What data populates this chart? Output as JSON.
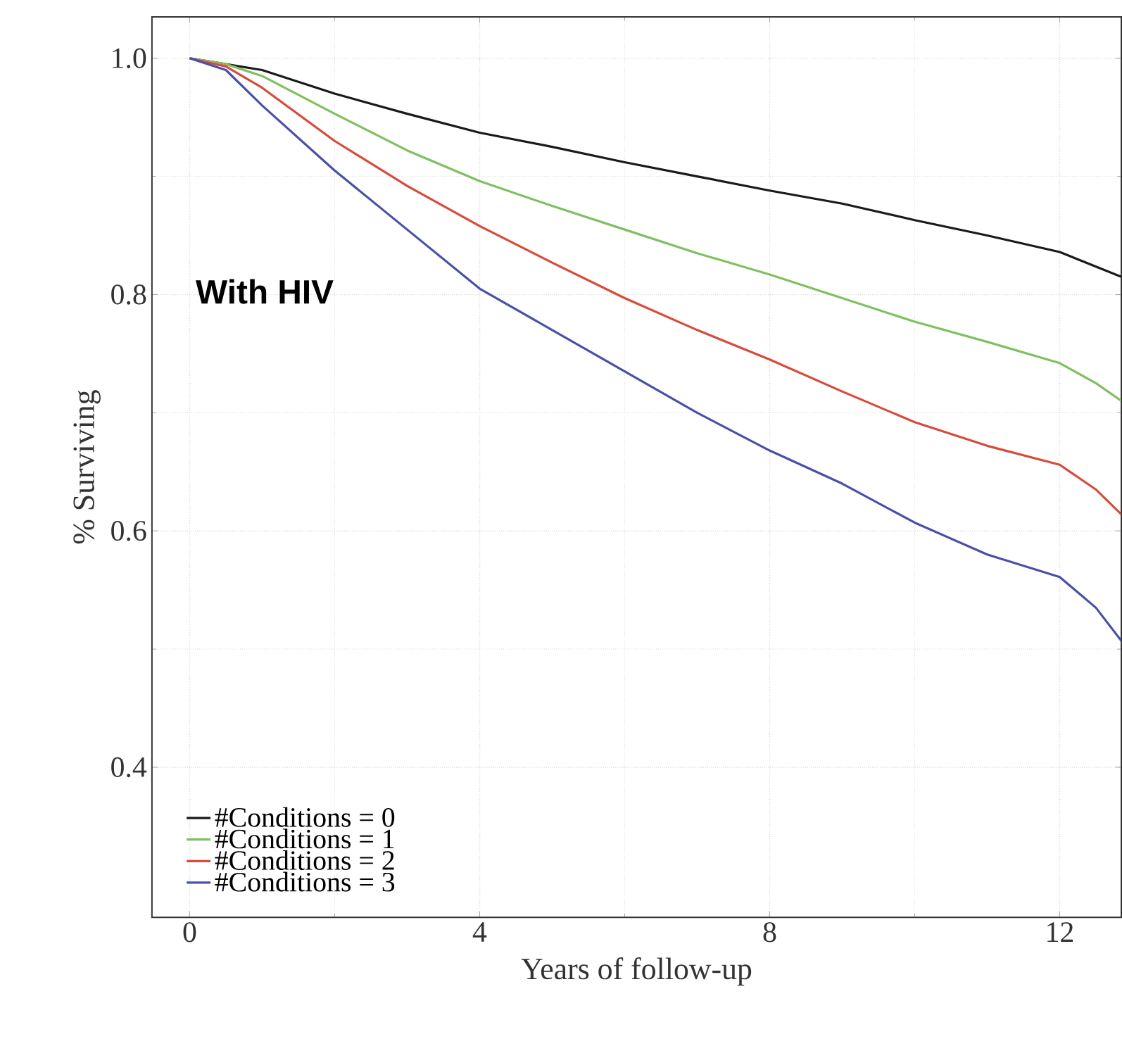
{
  "chart_data": {
    "type": "line",
    "xlabel": "Years of follow-up",
    "ylabel": "% Surviving",
    "annotations": [
      "With HIV"
    ],
    "xlim": [
      -0.52,
      12.85
    ],
    "ylim": [
      0.273,
      1.035
    ],
    "xticks": [
      0,
      4,
      8,
      12
    ],
    "yticks": [
      {
        "value": 0.4,
        "label": "0.4"
      },
      {
        "value": 0.6,
        "label": "0.6"
      },
      {
        "value": 0.8,
        "label": "0.8"
      },
      {
        "value": 1.0,
        "label": "1.0"
      }
    ],
    "grid": true,
    "legend": "bottom left",
    "series": [
      {
        "name": "#Conditions = 0",
        "color": "#1a1a1a",
        "x": [
          0,
          0.5,
          1,
          2,
          3,
          4,
          5,
          6,
          7,
          8,
          9,
          10,
          11,
          12,
          12.85
        ],
        "values": [
          1.0,
          0.995,
          0.99,
          0.97,
          0.953,
          0.937,
          0.925,
          0.912,
          0.9,
          0.888,
          0.877,
          0.863,
          0.85,
          0.836,
          0.815
        ]
      },
      {
        "name": "#Conditions = 1",
        "color": "#7fc060",
        "x": [
          0,
          0.5,
          1,
          2,
          3,
          4,
          5,
          6,
          7,
          8,
          9,
          10,
          11,
          12,
          12.5,
          12.85
        ],
        "values": [
          1.0,
          0.995,
          0.985,
          0.953,
          0.922,
          0.896,
          0.875,
          0.855,
          0.835,
          0.817,
          0.797,
          0.777,
          0.76,
          0.742,
          0.725,
          0.71
        ]
      },
      {
        "name": "#Conditions = 2",
        "color": "#d94a3a",
        "x": [
          0,
          0.5,
          1,
          2,
          3,
          4,
          5,
          6,
          7,
          8,
          9,
          10,
          11,
          12,
          12.5,
          12.85
        ],
        "values": [
          1.0,
          0.993,
          0.975,
          0.93,
          0.892,
          0.858,
          0.827,
          0.797,
          0.77,
          0.745,
          0.718,
          0.692,
          0.672,
          0.656,
          0.635,
          0.614
        ]
      },
      {
        "name": "#Conditions = 3",
        "color": "#4a4fa8",
        "x": [
          0,
          0.5,
          1,
          2,
          3,
          4,
          5,
          6,
          7,
          8,
          9,
          10,
          11,
          12,
          12.5,
          12.85
        ],
        "values": [
          1.0,
          0.99,
          0.96,
          0.905,
          0.855,
          0.805,
          0.77,
          0.735,
          0.7,
          0.668,
          0.64,
          0.607,
          0.58,
          0.561,
          0.535,
          0.507
        ]
      }
    ]
  }
}
